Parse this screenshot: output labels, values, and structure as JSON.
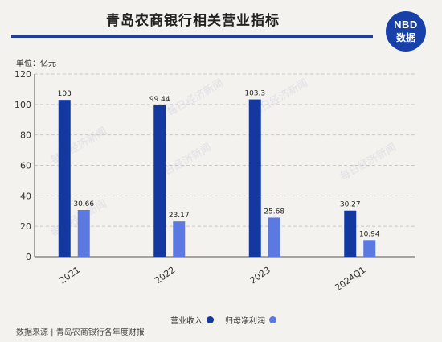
{
  "header": {
    "title": "青岛农商银行相关营业指标",
    "logo_line1": "NBD",
    "logo_line2": "数据"
  },
  "unit_label": "单位：亿元",
  "watermark": "每日经济新闻",
  "source": "数据来源 | 青岛农商银行各年度财报",
  "colors": {
    "revenue": "#1338a0",
    "net_profit": "#5b79e0",
    "title_rule": "#1f3d99",
    "background": "#f3f2ee"
  },
  "chart_data": {
    "type": "bar",
    "categories": [
      "2021",
      "2022",
      "2023",
      "2024Q1"
    ],
    "series": [
      {
        "name": "营业收入",
        "values": [
          103,
          99.44,
          103.3,
          30.27
        ],
        "labels": [
          "103",
          "99.44",
          "103.3",
          "30.27"
        ]
      },
      {
        "name": "归母净利润",
        "values": [
          30.66,
          23.17,
          25.68,
          10.94
        ],
        "labels": [
          "30.66",
          "23.17",
          "25.68",
          "10.94"
        ]
      }
    ],
    "ylim": [
      0,
      120
    ],
    "yticks": [
      0,
      20,
      40,
      60,
      80,
      100,
      120
    ],
    "grid": true,
    "legend": "bottom"
  }
}
